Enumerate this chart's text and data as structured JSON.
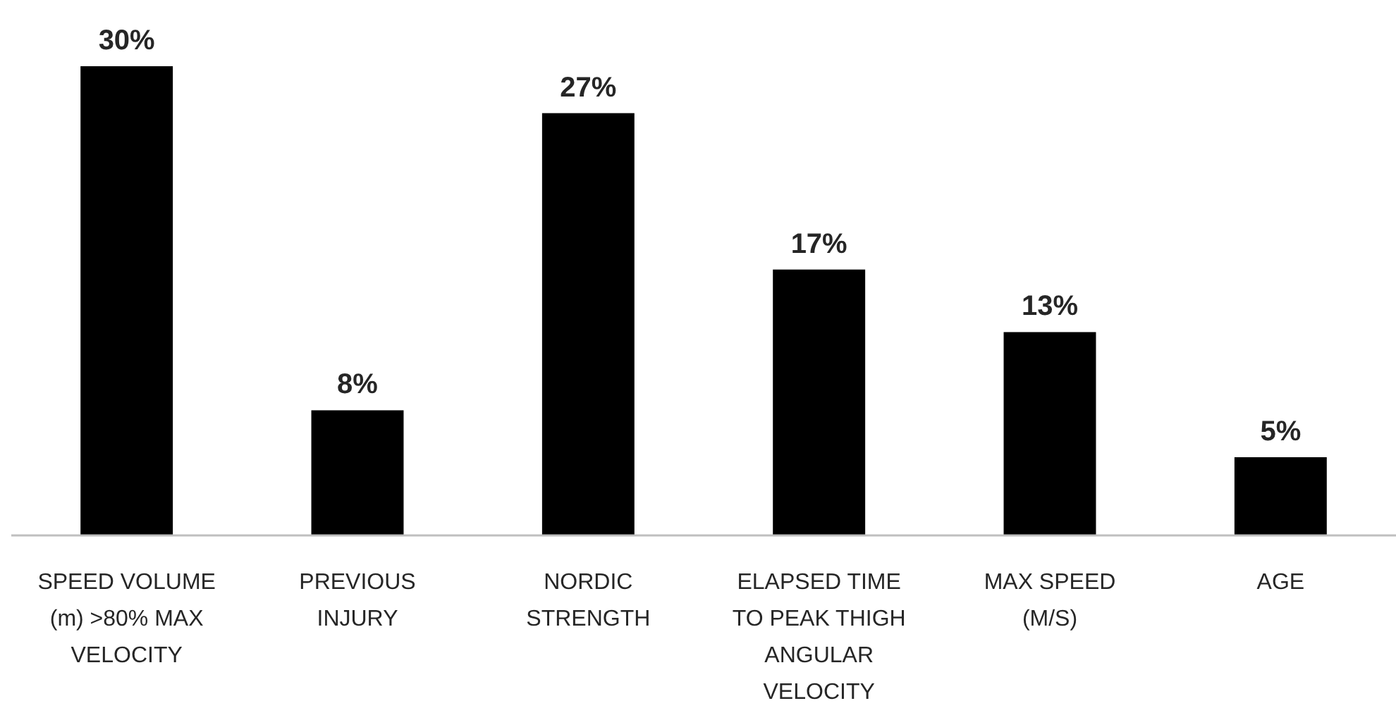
{
  "chart_data": {
    "type": "bar",
    "categories": [
      "SPEED VOLUME (m) >80% MAX VELOCITY",
      "PREVIOUS INJURY",
      "NORDIC STRENGTH",
      "ELAPSED TIME TO PEAK THIGH ANGULAR VELOCITY",
      "MAX SPEED (M/S)",
      "AGE"
    ],
    "values": [
      30,
      8,
      27,
      17,
      13,
      5
    ],
    "value_labels": [
      "30%",
      "8%",
      "27%",
      "17%",
      "13%",
      "5%"
    ],
    "color": "#000000"
  }
}
